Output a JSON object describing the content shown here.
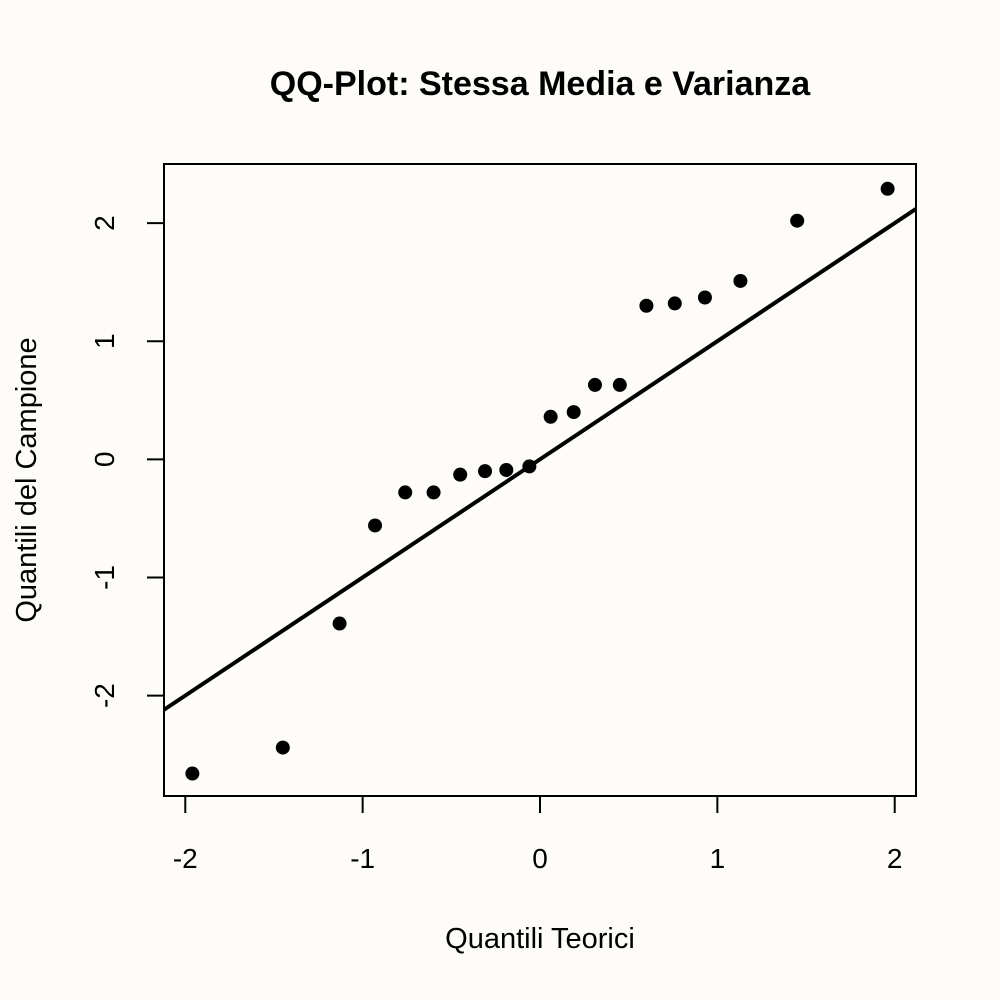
{
  "chart_data": {
    "type": "scatter",
    "title": "QQ-Plot: Stessa Media e Varianza",
    "xlabel": "Quantili Teorici",
    "ylabel": "Quantili del Campione",
    "xlim": [
      -2.12,
      2.12
    ],
    "ylim": [
      -2.85,
      2.5
    ],
    "xticks": [
      -2,
      -1,
      0,
      1,
      2
    ],
    "yticks": [
      -2,
      -1,
      0,
      1,
      2
    ],
    "xtick_labels": [
      "-2",
      "-1",
      "0",
      "1",
      "2"
    ],
    "ytick_labels": [
      "-2",
      "-1",
      "0",
      "1",
      "2"
    ],
    "grid": false,
    "point_color": "#000000",
    "reference_line": {
      "intercept": 0.0,
      "slope": 1.0,
      "color": "#000000"
    },
    "series": [
      {
        "x": [
          -1.96,
          -1.45,
          -1.13,
          -0.93,
          -0.76,
          -0.6,
          -0.45,
          -0.31,
          -0.19,
          -0.06,
          0.06,
          0.19,
          0.31,
          0.45,
          0.6,
          0.76,
          0.93,
          1.13,
          1.45,
          1.96
        ],
        "y": [
          -2.66,
          -2.44,
          -1.39,
          -0.56,
          -0.28,
          -0.28,
          -0.13,
          -0.1,
          -0.09,
          -0.06,
          0.36,
          0.4,
          0.63,
          0.63,
          1.3,
          1.32,
          1.37,
          1.51,
          2.02,
          2.29
        ]
      }
    ]
  }
}
